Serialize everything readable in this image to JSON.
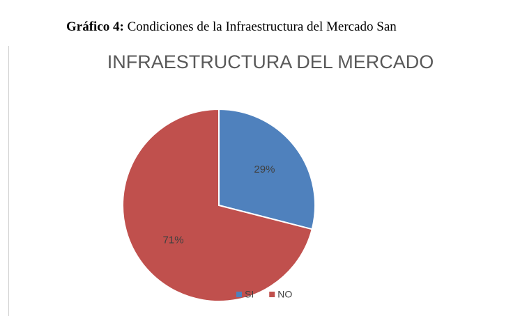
{
  "caption": {
    "label": "Gráfico 4:",
    "text": "Condiciones de la Infraestructura del Mercado San"
  },
  "chart_data": {
    "type": "pie",
    "title": "INFRAESTRUCTURA DEL MERCADO",
    "categories": [
      "SI",
      "NO"
    ],
    "values": [
      29,
      71
    ],
    "value_labels": [
      "29%",
      "71%"
    ],
    "colors": [
      "#4f81bd",
      "#c0504d"
    ],
    "legend": "bottom"
  }
}
